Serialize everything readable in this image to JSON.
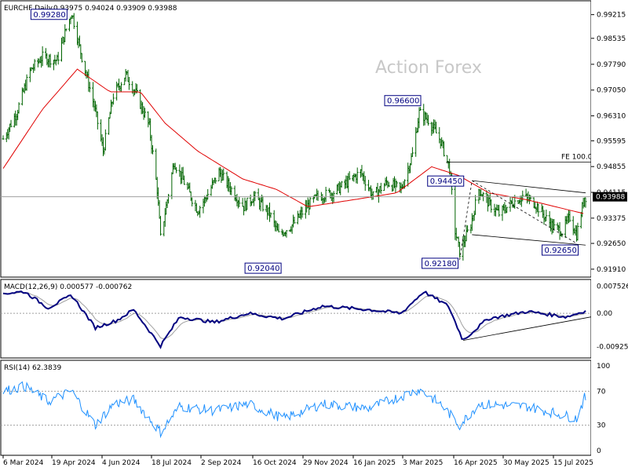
{
  "header": {
    "symbol": "EURCHF,Daily",
    "ohlc": "0.93975 0.94024 0.93909 0.93988"
  },
  "watermark": "Action Forex",
  "colors": {
    "background": "#ffffff",
    "bars": "#006400",
    "ma": "#e00000",
    "macd_line": "#000080",
    "signal_line": "#a0a0a0",
    "rsi_line": "#1e90ff",
    "annotation_box": "#000080",
    "trendline": "#000000"
  },
  "panels": {
    "macd": {
      "label": "MACD(12,26,9) 0.000577 -0.000762"
    },
    "rsi": {
      "label": "RSI(14) 62.3839"
    }
  },
  "chart_data": {
    "type": "candlestick",
    "title": "EURCHF,Daily",
    "price_axis": {
      "ticks": [
        "0.99215",
        "0.98535",
        "0.97790",
        "0.97050",
        "0.96310",
        "0.95595",
        "0.94855",
        "0.94115",
        "0.93375",
        "0.92650",
        "0.91910"
      ],
      "current_price_label": "0.93988",
      "range": [
        0.9175,
        0.995
      ]
    },
    "macd_axis": {
      "ticks": [
        "0.007526",
        "0.00",
        "-0.009252"
      ],
      "range": [
        -0.0115,
        0.0085
      ]
    },
    "rsi_axis": {
      "ticks": [
        "100",
        "70",
        "30",
        "0"
      ],
      "range": [
        0,
        100
      ],
      "levels": [
        70,
        30
      ]
    },
    "date_ticks": [
      "6 Mar 2024",
      "19 Apr 2024",
      "4 Jun 2024",
      "18 Jul 2024",
      "2 Sep 2024",
      "16 Oct 2024",
      "29 Nov 2024",
      "16 Jan 2025",
      "3 Mar 2025",
      "16 Apr 2025",
      "30 May 2025",
      "15 Jul 2025"
    ],
    "price_path": [
      {
        "date": "2024-03-01",
        "close": 0.9565
      },
      {
        "date": "2024-03-13",
        "close": 0.964
      },
      {
        "date": "2024-03-25",
        "close": 0.976
      },
      {
        "date": "2024-04-05",
        "close": 0.98
      },
      {
        "date": "2024-04-18",
        "close": 0.979
      },
      {
        "date": "2024-04-26",
        "close": 0.988
      },
      {
        "date": "2024-05-01",
        "close": 0.9928
      },
      {
        "date": "2024-05-10",
        "close": 0.98
      },
      {
        "date": "2024-05-21",
        "close": 0.966
      },
      {
        "date": "2024-05-29",
        "close": 0.953
      },
      {
        "date": "2024-06-07",
        "close": 0.969
      },
      {
        "date": "2024-06-18",
        "close": 0.975
      },
      {
        "date": "2024-06-28",
        "close": 0.969
      },
      {
        "date": "2024-07-09",
        "close": 0.96
      },
      {
        "date": "2024-07-16",
        "close": 0.942
      },
      {
        "date": "2024-07-19",
        "close": 0.928
      },
      {
        "date": "2024-07-31",
        "close": 0.95
      },
      {
        "date": "2024-08-09",
        "close": 0.944
      },
      {
        "date": "2024-08-21",
        "close": 0.936
      },
      {
        "date": "2024-08-29",
        "close": 0.94
      },
      {
        "date": "2024-09-09",
        "close": 0.947
      },
      {
        "date": "2024-09-20",
        "close": 0.942
      },
      {
        "date": "2024-10-01",
        "close": 0.937
      },
      {
        "date": "2024-10-10",
        "close": 0.94
      },
      {
        "date": "2024-10-24",
        "close": 0.935
      },
      {
        "date": "2024-11-01",
        "close": 0.929
      },
      {
        "date": "2024-11-14",
        "close": 0.932
      },
      {
        "date": "2024-11-26",
        "close": 0.937
      },
      {
        "date": "2024-12-06",
        "close": 0.94
      },
      {
        "date": "2024-12-19",
        "close": 0.941
      },
      {
        "date": "2025-01-01",
        "close": 0.944
      },
      {
        "date": "2025-01-13",
        "close": 0.947
      },
      {
        "date": "2025-01-24",
        "close": 0.94
      },
      {
        "date": "2025-02-05",
        "close": 0.944
      },
      {
        "date": "2025-02-18",
        "close": 0.942
      },
      {
        "date": "2025-02-28",
        "close": 0.952
      },
      {
        "date": "2025-03-06",
        "close": 0.964
      },
      {
        "date": "2025-03-14",
        "close": 0.962
      },
      {
        "date": "2025-03-25",
        "close": 0.956
      },
      {
        "date": "2025-04-02",
        "close": 0.948
      },
      {
        "date": "2025-04-07",
        "close": 0.93
      },
      {
        "date": "2025-04-11",
        "close": 0.924
      },
      {
        "date": "2025-04-21",
        "close": 0.932
      },
      {
        "date": "2025-04-28",
        "close": 0.942
      },
      {
        "date": "2025-05-07",
        "close": 0.938
      },
      {
        "date": "2025-05-16",
        "close": 0.935
      },
      {
        "date": "2025-05-27",
        "close": 0.938
      },
      {
        "date": "2025-06-06",
        "close": 0.94
      },
      {
        "date": "2025-06-17",
        "close": 0.938
      },
      {
        "date": "2025-06-26",
        "close": 0.934
      },
      {
        "date": "2025-07-04",
        "close": 0.931
      },
      {
        "date": "2025-07-11",
        "close": 0.93
      },
      {
        "date": "2025-07-18",
        "close": 0.934
      },
      {
        "date": "2025-07-24",
        "close": 0.929
      },
      {
        "date": "2025-07-31",
        "close": 0.9399
      }
    ],
    "moving_average": [
      {
        "date": "2024-03-01",
        "value": 0.948
      },
      {
        "date": "2024-04-05",
        "value": 0.965
      },
      {
        "date": "2024-05-06",
        "value": 0.9765
      },
      {
        "date": "2024-06-04",
        "value": 0.97
      },
      {
        "date": "2024-07-01",
        "value": 0.97
      },
      {
        "date": "2024-07-23",
        "value": 0.961
      },
      {
        "date": "2024-08-21",
        "value": 0.953
      },
      {
        "date": "2024-09-30",
        "value": 0.945
      },
      {
        "date": "2024-10-30",
        "value": 0.942
      },
      {
        "date": "2024-11-27",
        "value": 0.937
      },
      {
        "date": "2025-01-06",
        "value": 0.939
      },
      {
        "date": "2025-02-14",
        "value": 0.941
      },
      {
        "date": "2025-03-17",
        "value": 0.9485
      },
      {
        "date": "2025-04-10",
        "value": 0.946
      },
      {
        "date": "2025-05-07",
        "value": 0.941
      },
      {
        "date": "2025-06-10",
        "value": 0.939
      },
      {
        "date": "2025-07-31",
        "value": 0.935
      }
    ],
    "annotations": [
      {
        "label": "0.99280",
        "date": "2024-05-01",
        "value": 0.9928
      },
      {
        "label": "0.92040",
        "date": "2024-11-06",
        "value": 0.9204
      },
      {
        "label": "0.96600",
        "date": "2025-03-06",
        "value": 0.966
      },
      {
        "label": "0.94450",
        "date": "2025-04-16",
        "value": 0.9445
      },
      {
        "label": "0.92180",
        "date": "2025-04-11",
        "value": 0.9218
      },
      {
        "label": "0.92650",
        "date": "2025-07-24",
        "value": 0.9265
      }
    ],
    "fe_level": {
      "label": "FE 100.0",
      "value": 0.9498
    },
    "channel": {
      "upper": [
        {
          "date": "2025-04-22",
          "value": 0.9445
        },
        {
          "date": "2025-08-01",
          "value": 0.941
        }
      ],
      "lower": [
        {
          "date": "2025-04-22",
          "value": 0.929
        },
        {
          "date": "2025-08-01",
          "value": 0.926
        }
      ]
    },
    "macd": {
      "name": "MACD(12,26,9)",
      "values": [
        {
          "date": "2024-03-01",
          "macd": 0.0055
        },
        {
          "date": "2024-03-20",
          "macd": 0.006
        },
        {
          "date": "2024-04-10",
          "macd": 0.0015
        },
        {
          "date": "2024-05-01",
          "macd": 0.005
        },
        {
          "date": "2024-05-22",
          "macd": -0.004
        },
        {
          "date": "2024-06-10",
          "macd": -0.002
        },
        {
          "date": "2024-06-25",
          "macd": 0.001
        },
        {
          "date": "2024-07-19",
          "macd": -0.009
        },
        {
          "date": "2024-08-05",
          "macd": -0.001
        },
        {
          "date": "2024-09-05",
          "macd": -0.0025
        },
        {
          "date": "2024-10-05",
          "macd": 0.0
        },
        {
          "date": "2024-11-05",
          "macd": -0.0015
        },
        {
          "date": "2024-12-10",
          "macd": 0.002
        },
        {
          "date": "2025-01-20",
          "macd": 0.001
        },
        {
          "date": "2025-02-18",
          "macd": 0.0
        },
        {
          "date": "2025-03-10",
          "macd": 0.006
        },
        {
          "date": "2025-04-01",
          "macd": 0.002
        },
        {
          "date": "2025-04-14",
          "macd": -0.0075
        },
        {
          "date": "2025-05-06",
          "macd": -0.0015
        },
        {
          "date": "2025-06-10",
          "macd": 0.0005
        },
        {
          "date": "2025-07-15",
          "macd": -0.001
        },
        {
          "date": "2025-07-31",
          "macd": 0.0006
        }
      ],
      "signal_last": -0.000762
    },
    "rsi": {
      "name": "RSI(14)",
      "last": 62.3839,
      "values": [
        {
          "date": "2024-03-01",
          "rsi": 70
        },
        {
          "date": "2024-03-20",
          "rsi": 76
        },
        {
          "date": "2024-04-10",
          "rsi": 58
        },
        {
          "date": "2024-05-01",
          "rsi": 70
        },
        {
          "date": "2024-05-22",
          "rsi": 30
        },
        {
          "date": "2024-06-07",
          "rsi": 55
        },
        {
          "date": "2024-06-25",
          "rsi": 60
        },
        {
          "date": "2024-07-19",
          "rsi": 22
        },
        {
          "date": "2024-08-05",
          "rsi": 52
        },
        {
          "date": "2024-09-05",
          "rsi": 47
        },
        {
          "date": "2024-10-05",
          "rsi": 55
        },
        {
          "date": "2024-11-05",
          "rsi": 38
        },
        {
          "date": "2024-12-10",
          "rsi": 55
        },
        {
          "date": "2025-01-20",
          "rsi": 50
        },
        {
          "date": "2025-03-06",
          "rsi": 72
        },
        {
          "date": "2025-03-25",
          "rsi": 55
        },
        {
          "date": "2025-04-11",
          "rsi": 30
        },
        {
          "date": "2025-04-28",
          "rsi": 55
        },
        {
          "date": "2025-06-10",
          "rsi": 52
        },
        {
          "date": "2025-07-24",
          "rsi": 38
        },
        {
          "date": "2025-07-31",
          "rsi": 62
        }
      ]
    }
  }
}
